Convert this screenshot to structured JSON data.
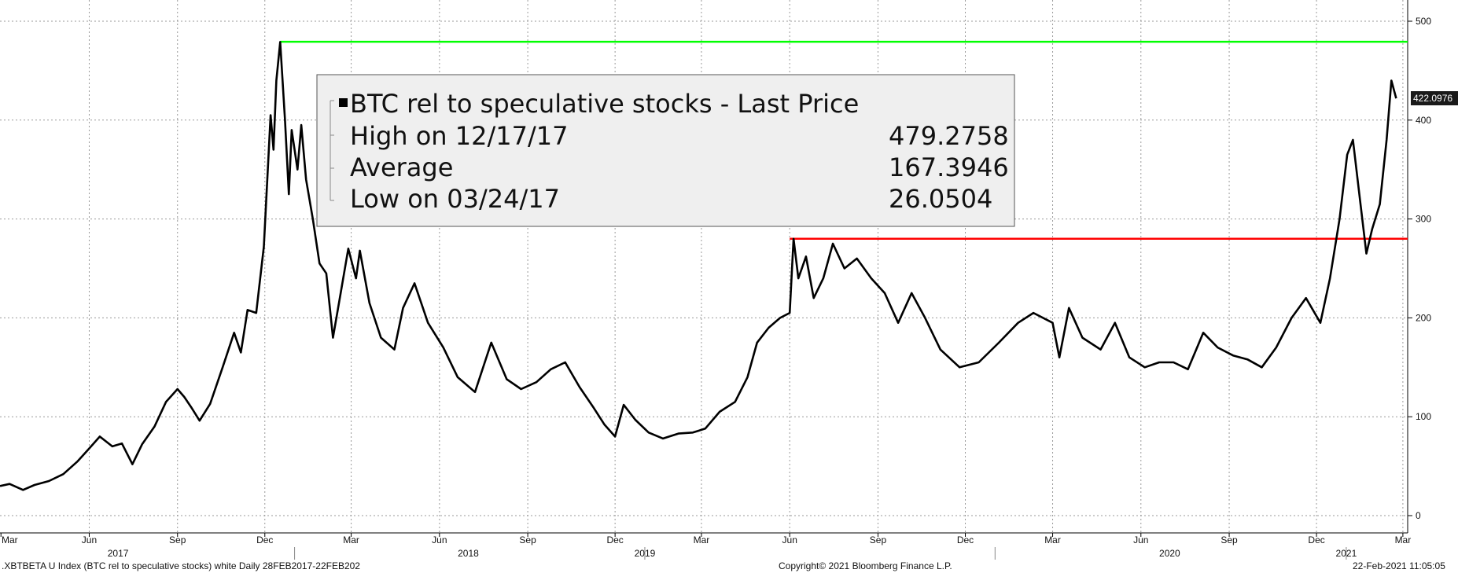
{
  "chart_data": {
    "type": "line",
    "title": "",
    "xlabel": "",
    "ylabel": "",
    "ylim": [
      0,
      500
    ],
    "y_ticks": [
      0,
      100,
      200,
      300,
      400,
      500
    ],
    "x_range": [
      "2017-02-28",
      "2021-02-22"
    ],
    "grid": true,
    "month_ticks": [
      {
        "label": "Mar",
        "date": "2017-03-01"
      },
      {
        "label": "Jun",
        "date": "2017-06-01"
      },
      {
        "label": "Sep",
        "date": "2017-09-01"
      },
      {
        "label": "Dec",
        "date": "2017-12-01"
      },
      {
        "label": "Mar",
        "date": "2018-03-01"
      },
      {
        "label": "Jun",
        "date": "2018-06-01"
      },
      {
        "label": "Sep",
        "date": "2018-09-01"
      },
      {
        "label": "Dec",
        "date": "2018-12-01"
      },
      {
        "label": "Mar",
        "date": "2019-03-01"
      },
      {
        "label": "Jun",
        "date": "2019-06-01"
      },
      {
        "label": "Sep",
        "date": "2019-09-01"
      },
      {
        "label": "Dec",
        "date": "2019-12-01"
      },
      {
        "label": "Mar",
        "date": "2020-03-01"
      },
      {
        "label": "Jun",
        "date": "2020-06-01"
      },
      {
        "label": "Sep",
        "date": "2020-09-01"
      },
      {
        "label": "Dec",
        "date": "2020-12-01"
      },
      {
        "label": "Mar",
        "date": "2021-03-01"
      }
    ],
    "year_labels": [
      {
        "label": "2017",
        "date": "2017-07-01"
      },
      {
        "label": "2018",
        "date": "2018-07-01"
      },
      {
        "label": "2019",
        "date": "2019-01-01"
      },
      {
        "label": "2020",
        "date": "2020-07-01"
      },
      {
        "label": "2021",
        "date": "2021-01-01"
      }
    ],
    "series": [
      {
        "color": "#000000",
        "points": [
          [
            "2017-02-28",
            30
          ],
          [
            "2017-03-10",
            32
          ],
          [
            "2017-03-24",
            26
          ],
          [
            "2017-04-05",
            31
          ],
          [
            "2017-04-20",
            35
          ],
          [
            "2017-05-05",
            42
          ],
          [
            "2017-05-20",
            55
          ],
          [
            "2017-06-01",
            68
          ],
          [
            "2017-06-12",
            80
          ],
          [
            "2017-06-25",
            70
          ],
          [
            "2017-07-05",
            73
          ],
          [
            "2017-07-16",
            52
          ],
          [
            "2017-07-26",
            72
          ],
          [
            "2017-08-08",
            90
          ],
          [
            "2017-08-20",
            115
          ],
          [
            "2017-09-01",
            128
          ],
          [
            "2017-09-08",
            120
          ],
          [
            "2017-09-15",
            110
          ],
          [
            "2017-09-24",
            96
          ],
          [
            "2017-10-05",
            113
          ],
          [
            "2017-10-18",
            150
          ],
          [
            "2017-10-30",
            185
          ],
          [
            "2017-11-06",
            165
          ],
          [
            "2017-11-13",
            208
          ],
          [
            "2017-11-22",
            205
          ],
          [
            "2017-11-30",
            272
          ],
          [
            "2017-12-07",
            405
          ],
          [
            "2017-12-10",
            370
          ],
          [
            "2017-12-13",
            440
          ],
          [
            "2017-12-17",
            479
          ],
          [
            "2017-12-22",
            400
          ],
          [
            "2017-12-26",
            325
          ],
          [
            "2017-12-29",
            390
          ],
          [
            "2018-01-04",
            350
          ],
          [
            "2018-01-08",
            395
          ],
          [
            "2018-01-13",
            340
          ],
          [
            "2018-01-20",
            300
          ],
          [
            "2018-01-27",
            255
          ],
          [
            "2018-02-03",
            245
          ],
          [
            "2018-02-10",
            180
          ],
          [
            "2018-02-18",
            225
          ],
          [
            "2018-02-26",
            270
          ],
          [
            "2018-03-06",
            240
          ],
          [
            "2018-03-10",
            268
          ],
          [
            "2018-03-20",
            215
          ],
          [
            "2018-04-01",
            180
          ],
          [
            "2018-04-15",
            168
          ],
          [
            "2018-04-24",
            210
          ],
          [
            "2018-05-06",
            235
          ],
          [
            "2018-05-20",
            195
          ],
          [
            "2018-06-05",
            170
          ],
          [
            "2018-06-20",
            140
          ],
          [
            "2018-07-08",
            125
          ],
          [
            "2018-07-25",
            175
          ],
          [
            "2018-08-10",
            138
          ],
          [
            "2018-08-25",
            128
          ],
          [
            "2018-09-10",
            135
          ],
          [
            "2018-09-25",
            148
          ],
          [
            "2018-10-10",
            155
          ],
          [
            "2018-10-25",
            130
          ],
          [
            "2018-11-08",
            110
          ],
          [
            "2018-11-20",
            92
          ],
          [
            "2018-12-01",
            80
          ],
          [
            "2018-12-10",
            112
          ],
          [
            "2018-12-22",
            97
          ],
          [
            "2019-01-05",
            84
          ],
          [
            "2019-01-20",
            78
          ],
          [
            "2019-02-05",
            83
          ],
          [
            "2019-02-20",
            84
          ],
          [
            "2019-03-05",
            88
          ],
          [
            "2019-03-20",
            105
          ],
          [
            "2019-04-05",
            115
          ],
          [
            "2019-04-18",
            140
          ],
          [
            "2019-04-28",
            175
          ],
          [
            "2019-05-10",
            190
          ],
          [
            "2019-05-22",
            200
          ],
          [
            "2019-06-01",
            205
          ],
          [
            "2019-06-05",
            280
          ],
          [
            "2019-06-10",
            240
          ],
          [
            "2019-06-18",
            262
          ],
          [
            "2019-06-26",
            220
          ],
          [
            "2019-07-06",
            240
          ],
          [
            "2019-07-16",
            275
          ],
          [
            "2019-07-28",
            250
          ],
          [
            "2019-08-10",
            260
          ],
          [
            "2019-08-25",
            240
          ],
          [
            "2019-09-08",
            225
          ],
          [
            "2019-09-22",
            195
          ],
          [
            "2019-10-06",
            225
          ],
          [
            "2019-10-20",
            200
          ],
          [
            "2019-11-05",
            168
          ],
          [
            "2019-11-25",
            150
          ],
          [
            "2019-12-15",
            155
          ],
          [
            "2020-01-05",
            175
          ],
          [
            "2020-01-25",
            195
          ],
          [
            "2020-02-10",
            205
          ],
          [
            "2020-03-01",
            195
          ],
          [
            "2020-03-08",
            160
          ],
          [
            "2020-03-18",
            210
          ],
          [
            "2020-04-01",
            180
          ],
          [
            "2020-04-20",
            168
          ],
          [
            "2020-05-05",
            195
          ],
          [
            "2020-05-20",
            160
          ],
          [
            "2020-06-05",
            150
          ],
          [
            "2020-06-20",
            155
          ],
          [
            "2020-07-05",
            155
          ],
          [
            "2020-07-20",
            148
          ],
          [
            "2020-08-05",
            185
          ],
          [
            "2020-08-20",
            170
          ],
          [
            "2020-09-05",
            162
          ],
          [
            "2020-09-20",
            158
          ],
          [
            "2020-10-05",
            150
          ],
          [
            "2020-10-20",
            170
          ],
          [
            "2020-11-05",
            200
          ],
          [
            "2020-11-20",
            220
          ],
          [
            "2020-12-05",
            195
          ],
          [
            "2020-12-15",
            240
          ],
          [
            "2020-12-25",
            300
          ],
          [
            "2021-01-02",
            365
          ],
          [
            "2021-01-08",
            380
          ],
          [
            "2021-01-14",
            330
          ],
          [
            "2021-01-22",
            265
          ],
          [
            "2021-01-28",
            290
          ],
          [
            "2021-02-05",
            315
          ],
          [
            "2021-02-12",
            380
          ],
          [
            "2021-02-17",
            440
          ],
          [
            "2021-02-22",
            422
          ]
        ]
      }
    ],
    "reference_lines": [
      {
        "value": 479.2758,
        "from": "2017-12-17",
        "to": "2021-03-15",
        "color": "#00ff00"
      },
      {
        "value": 280,
        "from": "2019-06-01",
        "to": "2021-03-15",
        "color": "#ff0000"
      }
    ],
    "last_price_label": "422.0976",
    "last_price_value": 422.0976,
    "legend": {
      "title": "BTC rel to speculative stocks - Last Price",
      "rows": [
        {
          "label": "High on 12/17/17",
          "value": "479.2758"
        },
        {
          "label": "Average",
          "value": "167.3946"
        },
        {
          "label": "Low on 03/24/17",
          "value": "26.0504"
        }
      ]
    },
    "footer": {
      "left": ".XBTBETA U Index (BTC rel to speculative stocks) white  Daily 28FEB2017-22FEB202",
      "center": "Copyright© 2021 Bloomberg Finance L.P.",
      "right": "22-Feb-2021 11:05:05"
    }
  }
}
